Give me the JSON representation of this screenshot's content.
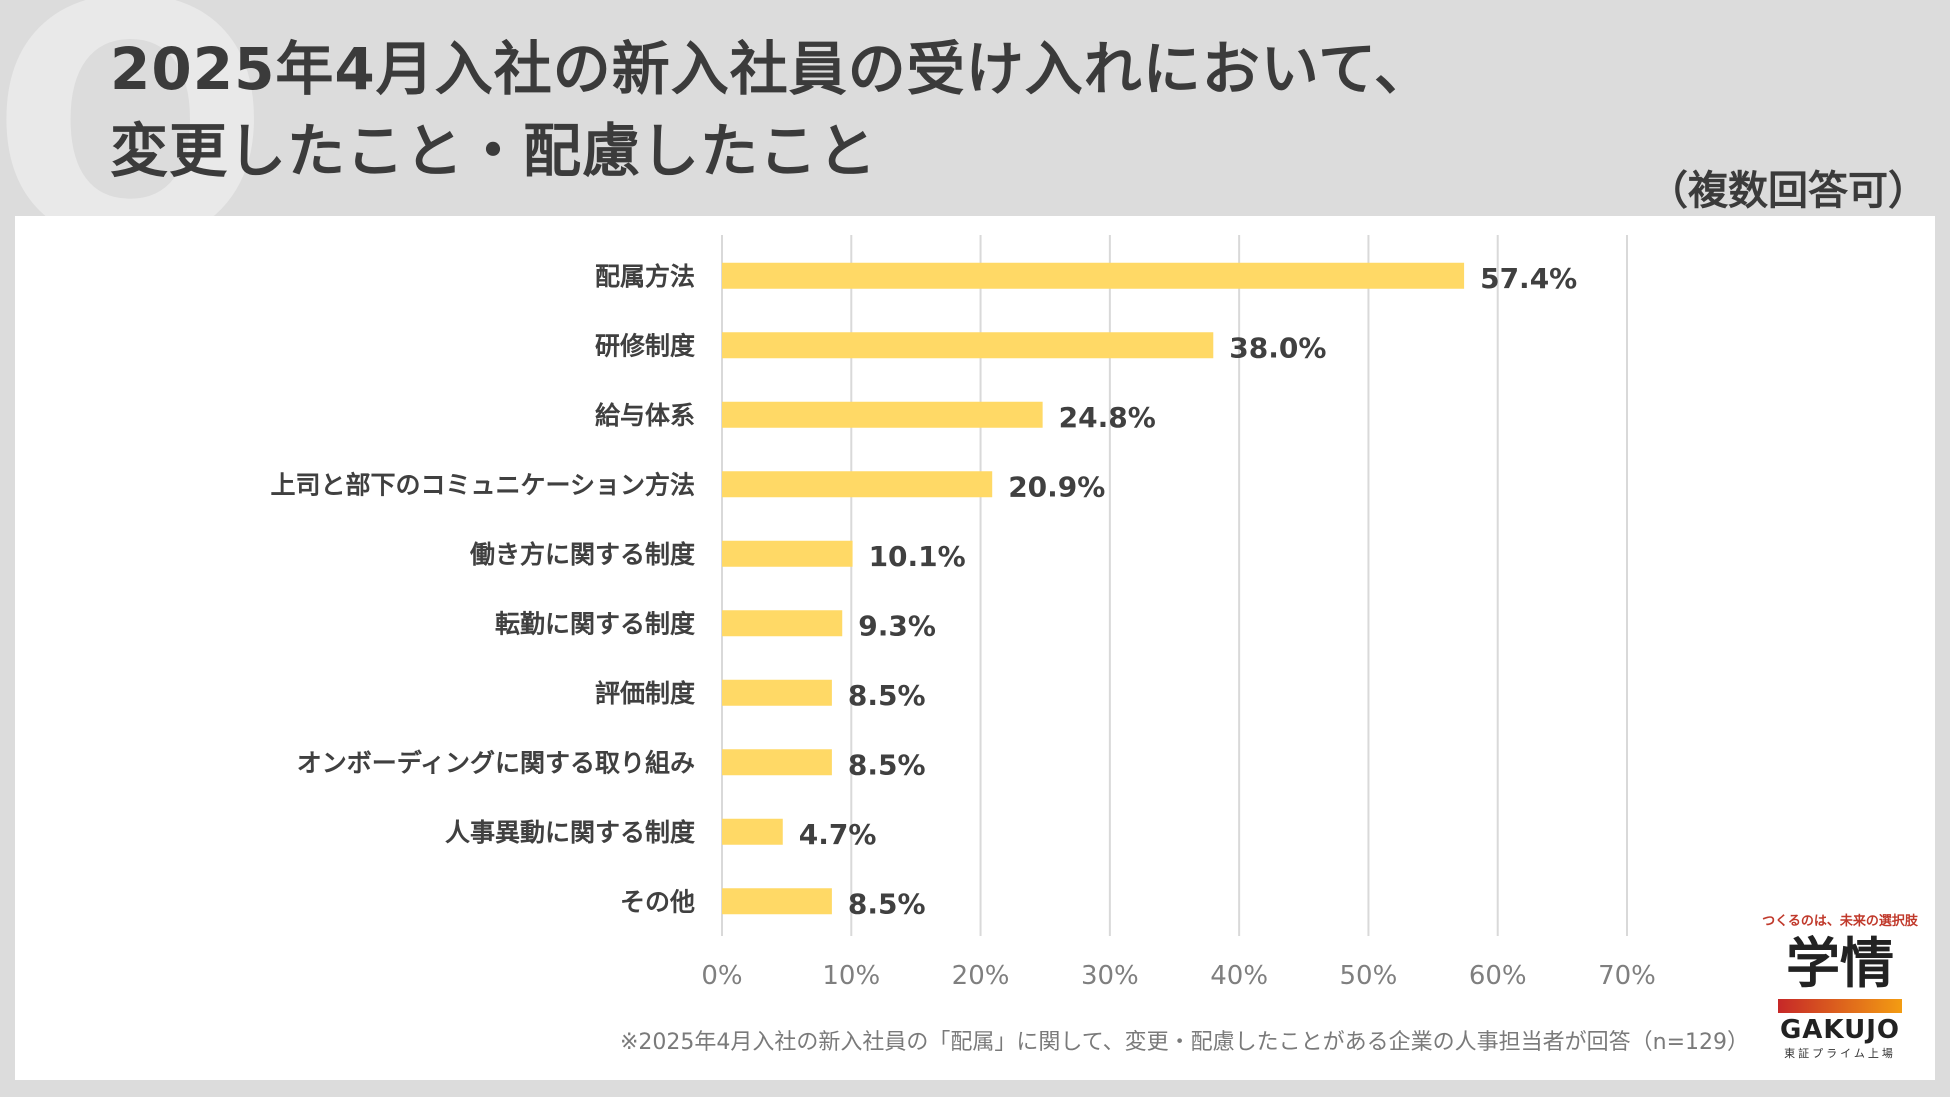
{
  "title": {
    "line1": "2025年4月入社の新入社員の受け入れにおいて、",
    "line2": "変更したこと・配慮したこと",
    "badge": "Q"
  },
  "subtitle": "（複数回答可）",
  "footnote": "※2025年4月入社の新入社員の「配属」に関して、変更・配慮したことがある企業の人事担当者が回答（n=129）",
  "logo": {
    "tagline": "つくるのは、未来の選択肢",
    "mark": "学情",
    "name": "GAKUJO",
    "listing": "東証プライム上場"
  },
  "colors": {
    "bar": "#ffd966",
    "grid": "#d9d9d9",
    "text": "#404040"
  },
  "chart_data": {
    "type": "bar",
    "orientation": "horizontal",
    "categories": [
      "配属方法",
      "研修制度",
      "給与体系",
      "上司と部下のコミュニケーション方法",
      "働き方に関する制度",
      "転勤に関する制度",
      "評価制度",
      "オンボーディングに関する取り組み",
      "人事異動に関する制度",
      "その他"
    ],
    "values": [
      57.4,
      38.0,
      24.8,
      20.9,
      10.1,
      9.3,
      8.5,
      8.5,
      4.7,
      8.5
    ],
    "value_labels": [
      "57.4%",
      "38.0%",
      "24.8%",
      "20.9%",
      "10.1%",
      "9.3%",
      "8.5%",
      "8.5%",
      "4.7%",
      "8.5%"
    ],
    "xlim": [
      0,
      70
    ],
    "ticks": [
      "0%",
      "10%",
      "20%",
      "30%",
      "40%",
      "50%",
      "60%",
      "70%"
    ],
    "tick_values": [
      0,
      10,
      20,
      30,
      40,
      50,
      60,
      70
    ],
    "grid": true
  }
}
